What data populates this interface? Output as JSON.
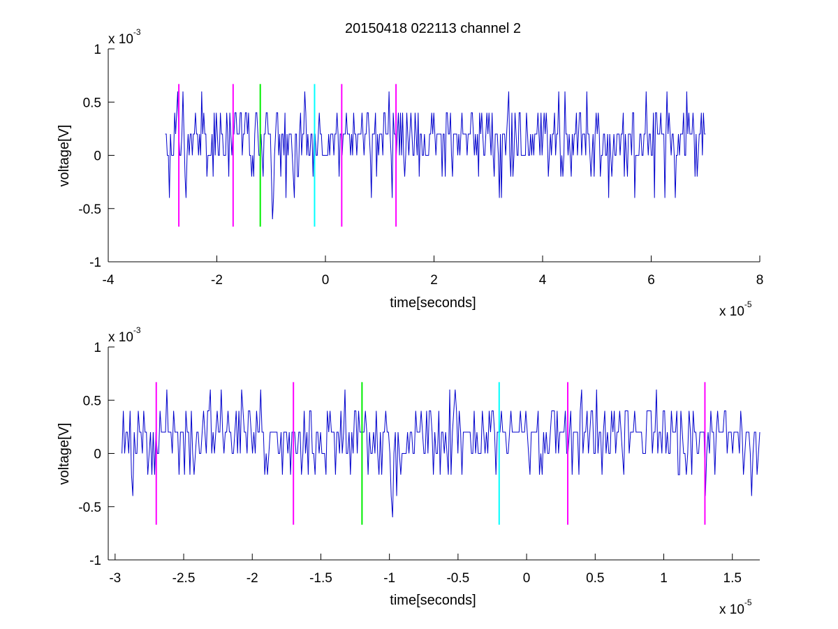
{
  "figure": {
    "title": "20150418 022113 channel 2"
  },
  "chart_data": [
    {
      "type": "line",
      "xlabel": "time[seconds]",
      "ylabel": "voltage[V]",
      "x_multiplier": "x 10",
      "x_exponent": "-5",
      "y_multiplier": "x 10",
      "y_exponent": "-3",
      "xlim": [
        -4,
        8
      ],
      "ylim": [
        -1,
        1
      ],
      "x_ticks": [
        -4,
        -2,
        0,
        2,
        4,
        6,
        8
      ],
      "x_tick_labels": [
        "-4",
        "-2",
        "0",
        "2",
        "4",
        "6",
        "8"
      ],
      "y_ticks": [
        -1,
        -0.5,
        0,
        0.5,
        1
      ],
      "y_tick_labels": [
        "-1",
        "-0.5",
        "0",
        "0.5",
        "1"
      ],
      "series": [
        {
          "color": "#0000cc",
          "x_start": -2.95,
          "x_end": 7.0,
          "points": 520,
          "quantum": 0.2,
          "values_hint": "noisy trace mostly between 0 and 0.4, dips to -0.4 / -0.6"
        }
      ],
      "markers": [
        {
          "x": -2.7,
          "color": "#ff00ff"
        },
        {
          "x": -1.7,
          "color": "#ff00ff"
        },
        {
          "x": -1.2,
          "color": "#00ee00"
        },
        {
          "x": -0.2,
          "color": "#00ffff"
        },
        {
          "x": 0.3,
          "color": "#ff00ff"
        },
        {
          "x": 1.3,
          "color": "#ff00ff"
        }
      ],
      "marker_range": [
        -0.67,
        0.67
      ]
    },
    {
      "type": "line",
      "xlabel": "time[seconds]",
      "ylabel": "voltage[V]",
      "x_multiplier": "x 10",
      "x_exponent": "-5",
      "y_multiplier": "x 10",
      "y_exponent": "-3",
      "xlim": [
        -3.05,
        1.7
      ],
      "ylim": [
        -1,
        1
      ],
      "x_ticks": [
        -3,
        -2.5,
        -2,
        -1.5,
        -1,
        -0.5,
        0,
        0.5,
        1,
        1.5
      ],
      "x_tick_labels": [
        "-3",
        "-2.5",
        "-2",
        "-1.5",
        "-1",
        "-0.5",
        "0",
        "0.5",
        "1",
        "1.5"
      ],
      "y_ticks": [
        -1,
        -0.5,
        0,
        0.5,
        1
      ],
      "y_tick_labels": [
        "-1",
        "-0.5",
        "0",
        "0.5",
        "1"
      ],
      "series": [
        {
          "color": "#0000cc",
          "x_start": -2.95,
          "x_end": 1.7,
          "points": 470,
          "quantum": 0.2,
          "values_hint": "zoomed noisy trace between 0 and 0.4 with dips to -0.4 / -0.6"
        }
      ],
      "markers": [
        {
          "x": -2.7,
          "color": "#ff00ff"
        },
        {
          "x": -1.7,
          "color": "#ff00ff"
        },
        {
          "x": -1.2,
          "color": "#00ee00"
        },
        {
          "x": -0.2,
          "color": "#00ffff"
        },
        {
          "x": 0.3,
          "color": "#ff00ff"
        },
        {
          "x": 1.3,
          "color": "#ff00ff"
        }
      ],
      "marker_range": [
        -0.67,
        0.67
      ]
    }
  ]
}
